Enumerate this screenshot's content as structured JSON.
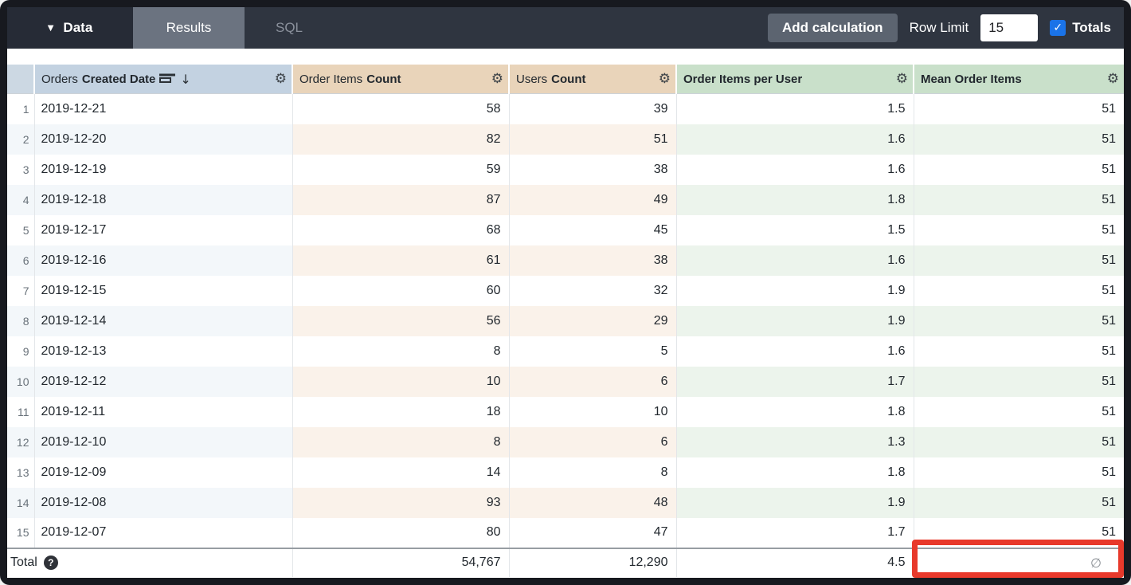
{
  "topbar": {
    "data_label": "Data",
    "results_label": "Results",
    "sql_label": "SQL",
    "add_calculation_label": "Add calculation",
    "row_limit_label": "Row Limit",
    "row_limit_value": "15",
    "totals_label": "Totals",
    "totals_checked": true
  },
  "icons": {
    "caret_down": "▼",
    "gear": "⚙",
    "sort_arrow": "↓",
    "check": "✓",
    "help": "?"
  },
  "colors": {
    "accent_blue": "#1a73e8",
    "highlight_red": "#e8392b",
    "dimension_header": "#c3d2e1",
    "measure_header": "#e9d4ba",
    "calculation_header": "#c9e0ca"
  },
  "table": {
    "columns": [
      {
        "name": "",
        "type": "rownum"
      },
      {
        "prefix": "Orders",
        "name": "Created Date",
        "type": "dimension",
        "sorted": "desc"
      },
      {
        "prefix": "Order Items",
        "name": "Count",
        "type": "measure"
      },
      {
        "prefix": "Users",
        "name": "Count",
        "type": "measure"
      },
      {
        "name": "Order Items per User",
        "type": "calculation"
      },
      {
        "name": "Mean Order Items",
        "type": "calculation"
      }
    ],
    "rows": [
      {
        "n": "1",
        "date": "2019-12-21",
        "order_items_count": "58",
        "users_count": "39",
        "order_items_per_user": "1.5",
        "mean_order_items": "51"
      },
      {
        "n": "2",
        "date": "2019-12-20",
        "order_items_count": "82",
        "users_count": "51",
        "order_items_per_user": "1.6",
        "mean_order_items": "51"
      },
      {
        "n": "3",
        "date": "2019-12-19",
        "order_items_count": "59",
        "users_count": "38",
        "order_items_per_user": "1.6",
        "mean_order_items": "51"
      },
      {
        "n": "4",
        "date": "2019-12-18",
        "order_items_count": "87",
        "users_count": "49",
        "order_items_per_user": "1.8",
        "mean_order_items": "51"
      },
      {
        "n": "5",
        "date": "2019-12-17",
        "order_items_count": "68",
        "users_count": "45",
        "order_items_per_user": "1.5",
        "mean_order_items": "51"
      },
      {
        "n": "6",
        "date": "2019-12-16",
        "order_items_count": "61",
        "users_count": "38",
        "order_items_per_user": "1.6",
        "mean_order_items": "51"
      },
      {
        "n": "7",
        "date": "2019-12-15",
        "order_items_count": "60",
        "users_count": "32",
        "order_items_per_user": "1.9",
        "mean_order_items": "51"
      },
      {
        "n": "8",
        "date": "2019-12-14",
        "order_items_count": "56",
        "users_count": "29",
        "order_items_per_user": "1.9",
        "mean_order_items": "51"
      },
      {
        "n": "9",
        "date": "2019-12-13",
        "order_items_count": "8",
        "users_count": "5",
        "order_items_per_user": "1.6",
        "mean_order_items": "51"
      },
      {
        "n": "10",
        "date": "2019-12-12",
        "order_items_count": "10",
        "users_count": "6",
        "order_items_per_user": "1.7",
        "mean_order_items": "51"
      },
      {
        "n": "11",
        "date": "2019-12-11",
        "order_items_count": "18",
        "users_count": "10",
        "order_items_per_user": "1.8",
        "mean_order_items": "51"
      },
      {
        "n": "12",
        "date": "2019-12-10",
        "order_items_count": "8",
        "users_count": "6",
        "order_items_per_user": "1.3",
        "mean_order_items": "51"
      },
      {
        "n": "13",
        "date": "2019-12-09",
        "order_items_count": "14",
        "users_count": "8",
        "order_items_per_user": "1.8",
        "mean_order_items": "51"
      },
      {
        "n": "14",
        "date": "2019-12-08",
        "order_items_count": "93",
        "users_count": "48",
        "order_items_per_user": "1.9",
        "mean_order_items": "51"
      },
      {
        "n": "15",
        "date": "2019-12-07",
        "order_items_count": "80",
        "users_count": "47",
        "order_items_per_user": "1.7",
        "mean_order_items": "51"
      }
    ],
    "total": {
      "label": "Total",
      "order_items_count": "54,767",
      "users_count": "12,290",
      "order_items_per_user": "4.5",
      "mean_order_items": "∅"
    }
  }
}
